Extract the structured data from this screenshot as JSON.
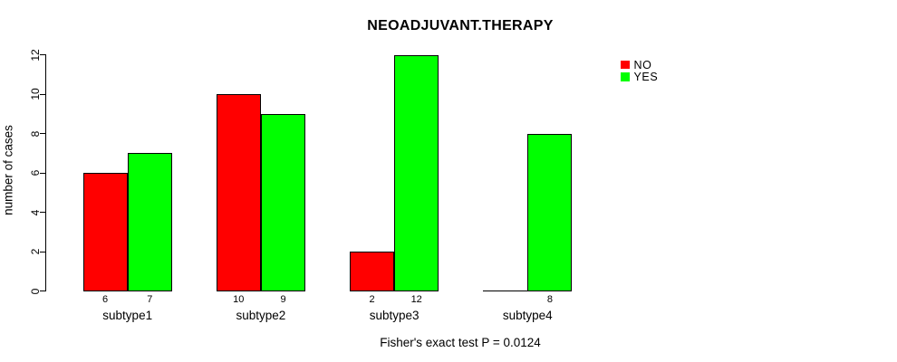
{
  "chart_data": {
    "type": "bar",
    "title": "NEOADJUVANT.THERAPY",
    "ylabel": "number of cases",
    "xlabel": "",
    "caption": "Fisher's exact test P = 0.0124",
    "categories": [
      "subtype1",
      "subtype2",
      "subtype3",
      "subtype4"
    ],
    "series": [
      {
        "name": "NO",
        "color": "#FF0000",
        "values": [
          6,
          10,
          2,
          0
        ]
      },
      {
        "name": "YES",
        "color": "#00FF00",
        "values": [
          7,
          9,
          12,
          8
        ]
      }
    ],
    "bar_value_labels": [
      [
        "6",
        "10",
        "2",
        ""
      ],
      [
        "7",
        "9",
        "12",
        "8"
      ]
    ],
    "yticks": [
      "0",
      "2",
      "4",
      "6",
      "8",
      "10",
      "12"
    ],
    "ylim": [
      0,
      12
    ],
    "grid": false,
    "bar_border_color": "#000000",
    "legend": {
      "position": "top-right",
      "entries": [
        {
          "label": "NO",
          "color": "#FF0000"
        },
        {
          "label": "YES",
          "color": "#00FF00"
        }
      ]
    }
  }
}
